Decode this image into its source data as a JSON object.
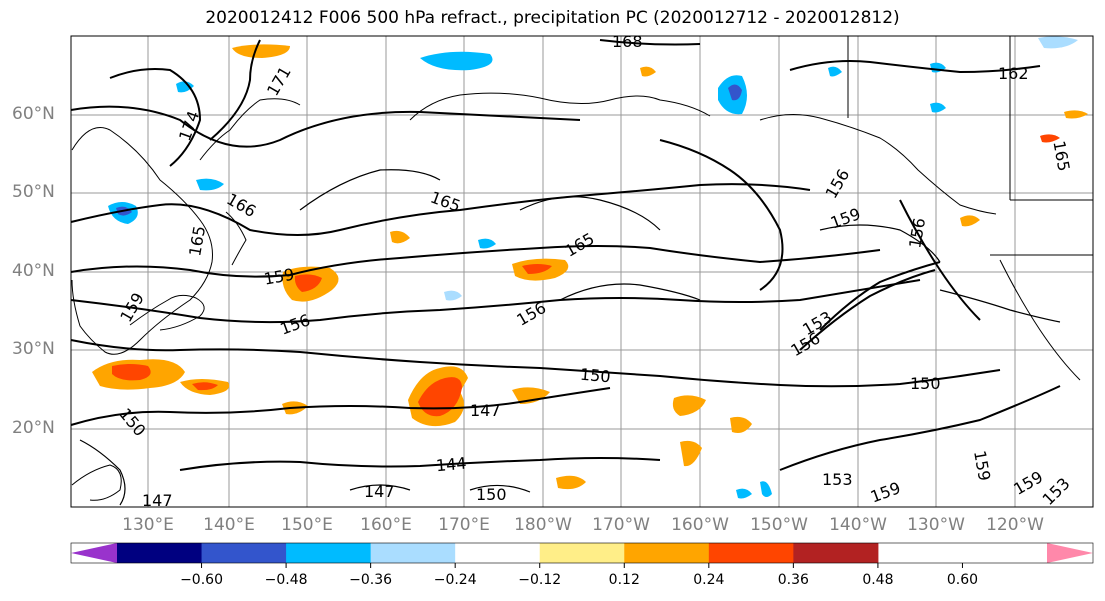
{
  "title": "2020012412 F006 500 hPa refract., precipitation PC (2020012712 - 2020012812)",
  "lat_labels": [
    "60°N",
    "50°N",
    "40°N",
    "30°N",
    "20°N"
  ],
  "lon_labels": [
    "130°E",
    "140°E",
    "150°E",
    "160°E",
    "170°E",
    "180°W",
    "170°W",
    "160°W",
    "150°W",
    "140°W",
    "130°W",
    "120°W"
  ],
  "colorbar": {
    "ticks": [
      "−0.60",
      "−0.48",
      "−0.36",
      "−0.24",
      "−0.12",
      "0.12",
      "0.24",
      "0.36",
      "0.48",
      "0.60"
    ],
    "colors": [
      "#9933cc",
      "#000080",
      "#3355cc",
      "#00bbff",
      "#aaddff",
      "#ffffff",
      "#ffee88",
      "#ffa500",
      "#ff4500",
      "#b22222",
      "#ff88aa"
    ]
  },
  "contour_labels": [
    "168",
    "171",
    "174",
    "162",
    "166",
    "165",
    "165",
    "165",
    "156",
    "159",
    "156",
    "159",
    "159",
    "156",
    "156",
    "153",
    "156",
    "150",
    "150",
    "147",
    "144",
    "150",
    "147",
    "147",
    "150",
    "159",
    "153",
    "159",
    "159",
    "153",
    "165"
  ],
  "fill_colors": {
    "pos_light": "#ffee88",
    "pos_mid": "#ffa500",
    "pos_high": "#ff4500",
    "neg_light": "#aaddff",
    "neg_mid": "#00bbff",
    "neg_high": "#3355cc"
  }
}
